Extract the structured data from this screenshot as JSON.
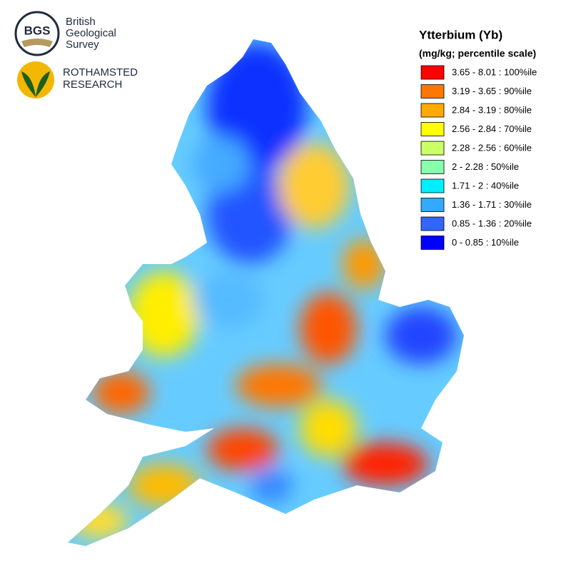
{
  "header": {
    "logos": [
      {
        "abbr": "BGS",
        "lines": [
          "British",
          "Geological",
          "Survey"
        ]
      },
      {
        "lines": [
          "ROTHAMSTED",
          "RESEARCH"
        ]
      }
    ]
  },
  "legend": {
    "title": "Ytterbium (Yb)",
    "subtitle": "(mg/kg; percentile scale)",
    "items": [
      {
        "label": "3.65 - 8.01 : 100%ile",
        "color": "#ff0000"
      },
      {
        "label": "3.19 - 3.65 : 90%ile",
        "color": "#ff7700"
      },
      {
        "label": "2.84 - 3.19 : 80%ile",
        "color": "#ffaa00"
      },
      {
        "label": "2.56 - 2.84 : 70%ile",
        "color": "#ffff00"
      },
      {
        "label": "2.28 - 2.56 : 60%ile",
        "color": "#ccff66"
      },
      {
        "label": "2 - 2.28 : 50%ile",
        "color": "#88ffaa"
      },
      {
        "label": "1.71 - 2 : 40%ile",
        "color": "#00eeff"
      },
      {
        "label": "1.36 - 1.71 : 30%ile",
        "color": "#33aaff"
      },
      {
        "label": "0.85 - 1.36 : 20%ile",
        "color": "#3366ff"
      },
      {
        "label": "0 - 0.85 : 10%ile",
        "color": "#0000ff"
      }
    ]
  }
}
